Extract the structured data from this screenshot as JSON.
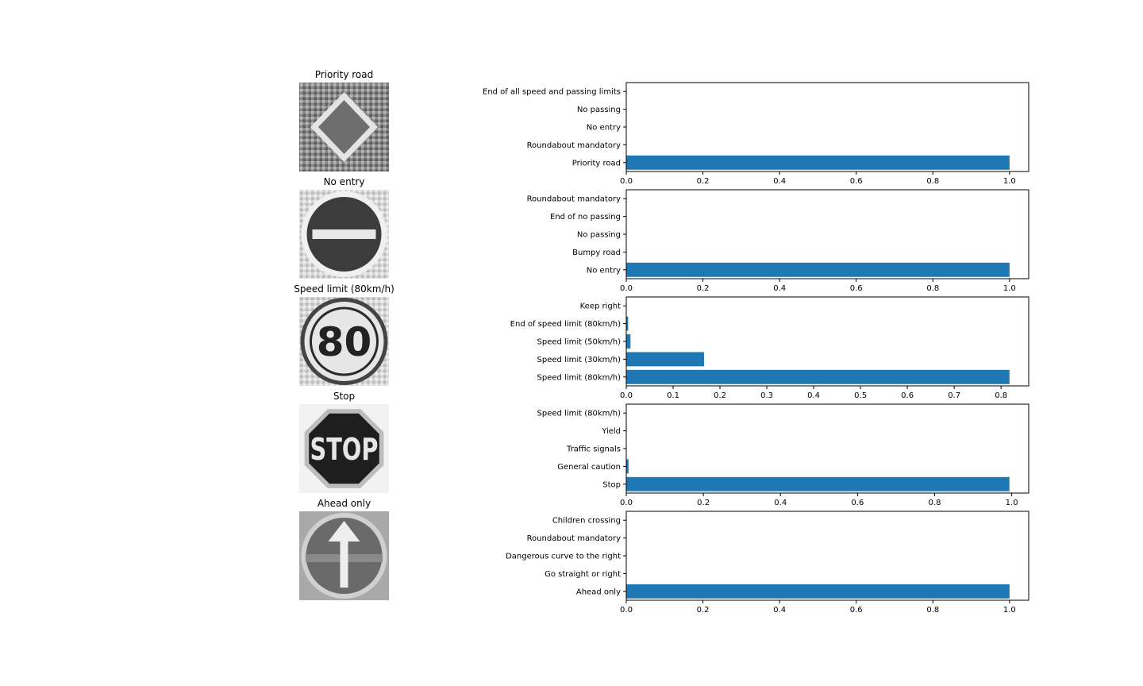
{
  "rows": [
    {
      "image_title": "Priority road",
      "sign_icon": "priority-road-sign-icon",
      "chart_data": {
        "type": "bar",
        "orientation": "horizontal",
        "categories": [
          "Priority road",
          "Roundabout mandatory",
          "No entry",
          "No passing",
          "End of all speed and passing limits"
        ],
        "values": [
          1.0,
          0.0,
          0.0,
          0.0,
          0.0
        ],
        "xlim": [
          0,
          1.05
        ],
        "xticks": [
          0.0,
          0.2,
          0.4,
          0.6,
          0.8,
          1.0
        ],
        "xtick_labels": [
          "0.0",
          "0.2",
          "0.4",
          "0.6",
          "0.8",
          "1.0"
        ],
        "color": "#1f77b4",
        "grid": false
      }
    },
    {
      "image_title": "No entry",
      "sign_icon": "no-entry-sign-icon",
      "chart_data": {
        "type": "bar",
        "orientation": "horizontal",
        "categories": [
          "No entry",
          "Bumpy road",
          "No passing",
          "End of no passing",
          "Roundabout mandatory"
        ],
        "values": [
          1.0,
          0.0,
          0.0,
          0.0,
          0.0
        ],
        "xlim": [
          0,
          1.05
        ],
        "xticks": [
          0.0,
          0.2,
          0.4,
          0.6,
          0.8,
          1.0
        ],
        "xtick_labels": [
          "0.0",
          "0.2",
          "0.4",
          "0.6",
          "0.8",
          "1.0"
        ],
        "color": "#1f77b4",
        "grid": false
      }
    },
    {
      "image_title": "Speed limit (80km/h)",
      "sign_icon": "speed-limit-80-sign-icon",
      "sign_text": "80",
      "chart_data": {
        "type": "bar",
        "orientation": "horizontal",
        "categories": [
          "Speed limit (80km/h)",
          "Speed limit (30km/h)",
          "Speed limit (50km/h)",
          "End of speed limit (80km/h)",
          "Keep right"
        ],
        "values": [
          0.818,
          0.166,
          0.009,
          0.004,
          0.0
        ],
        "xlim": [
          0,
          0.859
        ],
        "xticks": [
          0.0,
          0.1,
          0.2,
          0.3,
          0.4,
          0.5,
          0.6,
          0.7,
          0.8
        ],
        "xtick_labels": [
          "0.0",
          "0.1",
          "0.2",
          "0.3",
          "0.4",
          "0.5",
          "0.6",
          "0.7",
          "0.8"
        ],
        "color": "#1f77b4",
        "grid": false
      }
    },
    {
      "image_title": "Stop",
      "sign_icon": "stop-sign-icon",
      "sign_text": "STOP",
      "chart_data": {
        "type": "bar",
        "orientation": "horizontal",
        "categories": [
          "Stop",
          "General caution",
          "Traffic signals",
          "Yield",
          "Speed limit (80km/h)"
        ],
        "values": [
          0.994,
          0.006,
          0.0,
          0.0,
          0.0
        ],
        "xlim": [
          0,
          1.044
        ],
        "xticks": [
          0.0,
          0.2,
          0.4,
          0.6,
          0.8,
          1.0
        ],
        "xtick_labels": [
          "0.0",
          "0.2",
          "0.4",
          "0.6",
          "0.8",
          "1.0"
        ],
        "color": "#1f77b4",
        "grid": false
      }
    },
    {
      "image_title": "Ahead only",
      "sign_icon": "ahead-only-sign-icon",
      "chart_data": {
        "type": "bar",
        "orientation": "horizontal",
        "categories": [
          "Ahead only",
          "Go straight or right",
          "Dangerous curve to the right",
          "Roundabout mandatory",
          "Children crossing"
        ],
        "values": [
          1.0,
          0.0,
          0.0,
          0.0,
          0.0
        ],
        "xlim": [
          0,
          1.05
        ],
        "xticks": [
          0.0,
          0.2,
          0.4,
          0.6,
          0.8,
          1.0
        ],
        "xtick_labels": [
          "0.0",
          "0.2",
          "0.4",
          "0.6",
          "0.8",
          "1.0"
        ],
        "color": "#1f77b4",
        "grid": false
      }
    }
  ]
}
